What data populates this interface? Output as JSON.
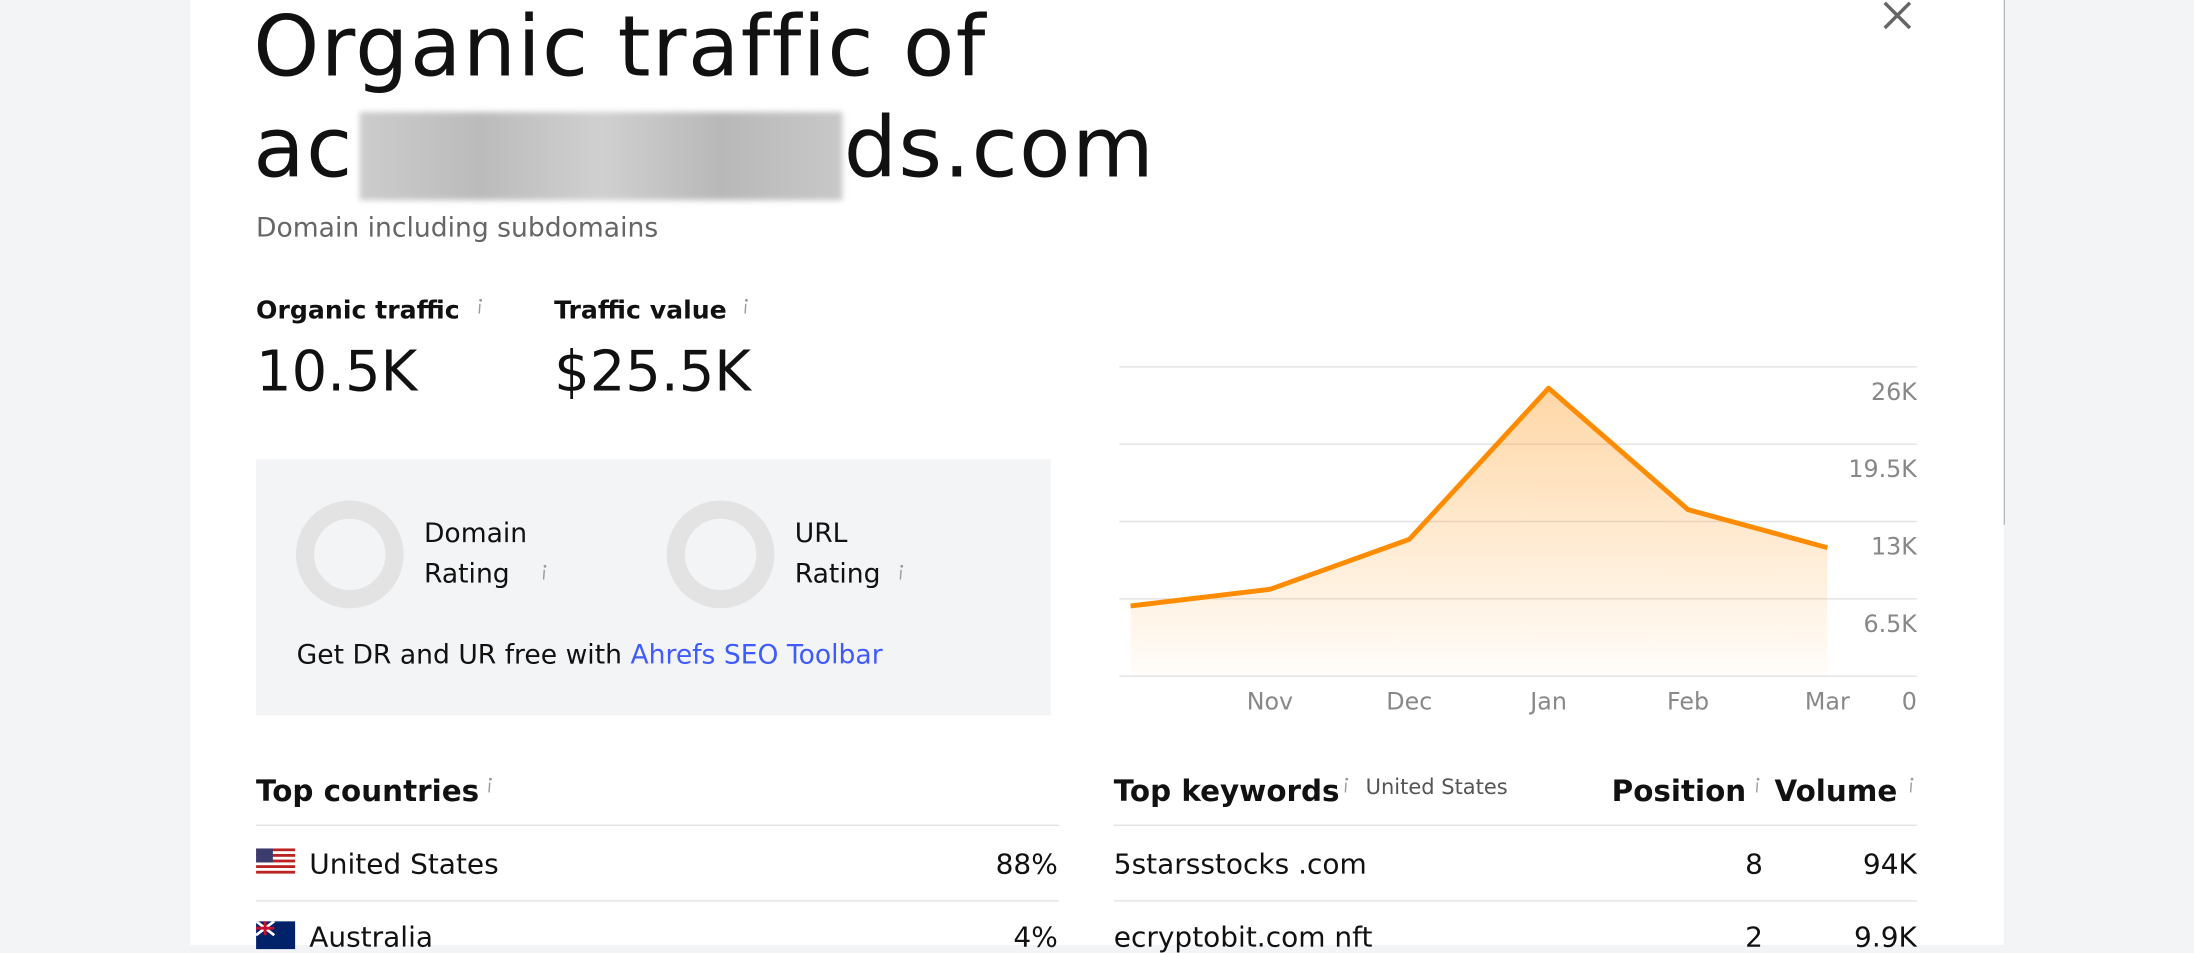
{
  "header": {
    "title": "Organic traffic of",
    "domain_start": "ac",
    "domain_end": "ds.com",
    "subtitle": "Domain including subdomains"
  },
  "metrics": [
    {
      "label": "Organic traffic",
      "value": "10.5K"
    },
    {
      "label": "Traffic value",
      "value": "$25.5K"
    }
  ],
  "ratings": {
    "items": [
      "Domain Rating",
      "URL Rating"
    ],
    "promo_text": "Get DR and UR free with",
    "promo_link": "Ahrefs SEO Toolbar"
  },
  "chart_data": {
    "type": "area",
    "categories": [
      null,
      "Nov",
      "Dec",
      "Jan",
      "Feb",
      "Mar"
    ],
    "values": [
      5900,
      7300,
      11500,
      24200,
      14000,
      10800
    ],
    "color": "#ff8c00",
    "ylim": [
      0,
      26000
    ],
    "yticks": [
      0,
      {
        "value": 6500,
        "label": "6.5K"
      },
      {
        "value": 13000,
        "label": "13K"
      },
      {
        "value": 19500,
        "label": "19.5K"
      },
      {
        "value": 26000,
        "label": "26K"
      }
    ],
    "grid": true
  },
  "top_countries": {
    "title": "Top countries",
    "rows": [
      [
        "United States",
        "88%"
      ],
      [
        "Australia",
        "4%"
      ]
    ]
  },
  "top_keywords": {
    "title": "Top keywords",
    "country": "United States",
    "columns": [
      "Position",
      "Volume"
    ],
    "rows": [
      [
        "5starsstocks .com",
        8,
        "94K"
      ],
      [
        "ecryptobit.com nft",
        2,
        "9.9K"
      ]
    ]
  }
}
